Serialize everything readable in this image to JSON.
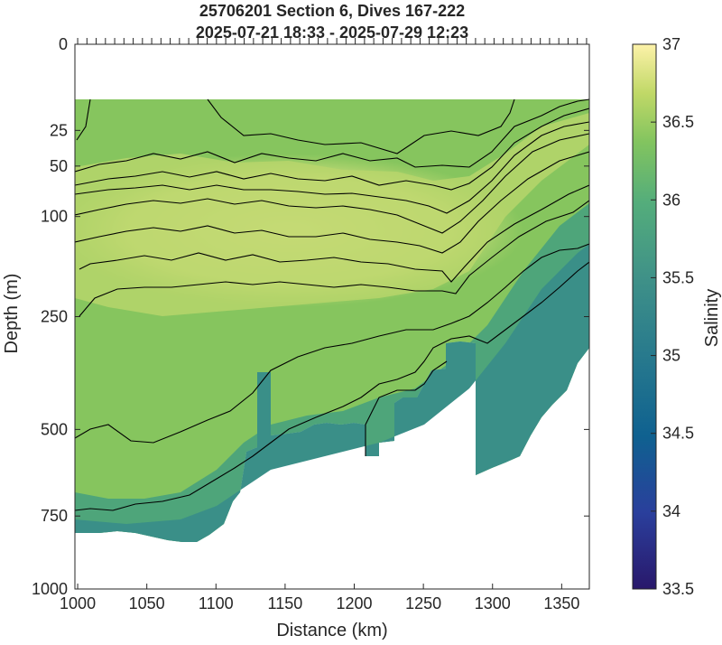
{
  "chart_data": {
    "type": "heatmap",
    "title": [
      "25706201 Section 6, Dives 167-222",
      "2025-07-21 18:33 - 2025-07-29 12:23"
    ],
    "xlabel": "Distance (km)",
    "ylabel": "Depth (m)",
    "colorbar_label": "Salinity",
    "xlim": [
      998,
      1370
    ],
    "ylim": [
      1000,
      0
    ],
    "y_scale": "sqrt",
    "x_ticks": [
      1000,
      1050,
      1100,
      1150,
      1200,
      1250,
      1300,
      1350
    ],
    "y_ticks": [
      0,
      25,
      50,
      100,
      250,
      500,
      750,
      1000
    ],
    "colorbar_ticks": [
      33.5,
      34,
      34.5,
      35,
      35.5,
      36,
      36.5,
      37
    ],
    "colorbar_range": [
      33.5,
      37
    ],
    "colormap": "haline",
    "contours": true,
    "dive_markers_at_top": true,
    "grid": false
  },
  "colors": {
    "axis": "#262626",
    "contour": "#000000",
    "colormap_stops": [
      "#29186b",
      "#2a3f9c",
      "#0f6190",
      "#287a8d",
      "#3f9188",
      "#54ad7b",
      "#82c45f",
      "#c0d867",
      "#f4ec98",
      "#fdf2a9"
    ]
  }
}
